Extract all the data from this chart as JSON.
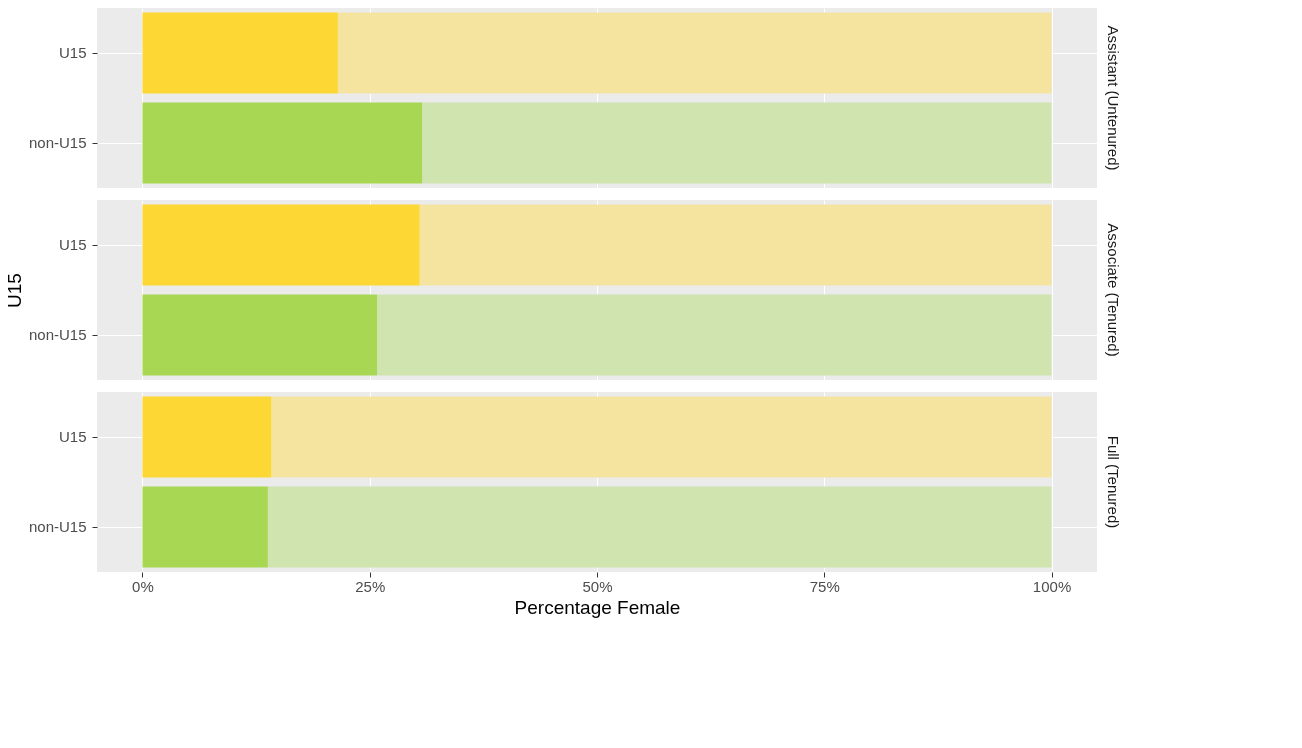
{
  "chart_data": [
    {
      "type": "bar",
      "orientation": "horizontal",
      "stacked": true,
      "title": "Assistant (Untenured)",
      "categories": [
        "U15",
        "non-U15"
      ],
      "series": [
        {
          "colors": [
            "#fdd835",
            "#a8d853"
          ],
          "values": [
            21.5,
            30.8
          ]
        },
        {
          "colors": [
            "#f4e4a0",
            "#d0e4b0"
          ],
          "values": [
            78.5,
            69.2
          ]
        }
      ],
      "xlim": [
        -5,
        105
      ],
      "xticks": [
        0,
        25,
        50,
        75,
        100
      ],
      "grid": true,
      "tick_labels": "y"
    },
    {
      "type": "bar",
      "orientation": "horizontal",
      "stacked": true,
      "title": "Associate (Tenured)",
      "ylabel": "U15",
      "categories": [
        "U15",
        "non-U15"
      ],
      "series": [
        {
          "colors": [
            "#fdd835",
            "#a8d853"
          ],
          "values": [
            30.5,
            25.8
          ]
        },
        {
          "colors": [
            "#f4e4a0",
            "#d0e4b0"
          ],
          "values": [
            69.5,
            74.2
          ]
        }
      ],
      "xlim": [
        -5,
        105
      ],
      "xticks": [
        0,
        25,
        50,
        75,
        100
      ],
      "grid": true,
      "tick_labels": "y"
    },
    {
      "type": "bar",
      "orientation": "horizontal",
      "stacked": true,
      "title": "Full (Tenured)",
      "xlabel": "Percentage Female",
      "categories": [
        "U15",
        "non-U15"
      ],
      "series": [
        {
          "colors": [
            "#fdd835",
            "#a8d853"
          ],
          "values": [
            14.2,
            13.8
          ]
        },
        {
          "colors": [
            "#f4e4a0",
            "#d0e4b0"
          ],
          "values": [
            85.8,
            86.2
          ]
        }
      ],
      "xlim": [
        -5,
        105
      ],
      "xticks": [
        {
          "value": 0,
          "label": "0%"
        },
        {
          "value": 25,
          "label": "25%"
        },
        {
          "value": 50,
          "label": "50%"
        },
        {
          "value": 75,
          "label": "75%"
        },
        {
          "value": 100,
          "label": "100%"
        }
      ],
      "grid": true
    }
  ]
}
